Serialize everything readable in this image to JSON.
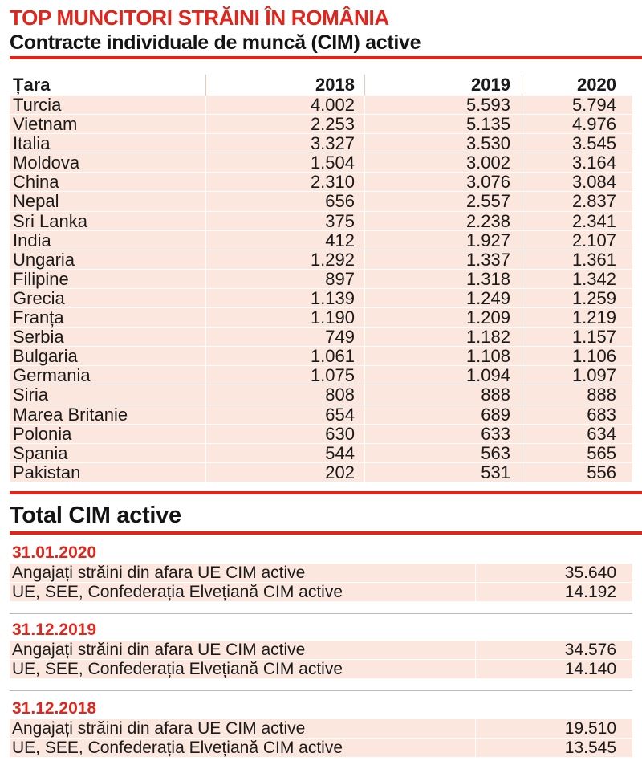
{
  "header": {
    "title": "TOP MUNCITORI STRĂINI ÎN ROMÂNIA",
    "subtitle": "Contracte individuale de muncă (CIM) active"
  },
  "table": {
    "columns": [
      "Țara",
      "2018",
      "2019",
      "2020"
    ],
    "rows": [
      [
        "Turcia",
        "4.002",
        "5.593",
        "5.794"
      ],
      [
        "Vietnam",
        "2.253",
        "5.135",
        "4.976"
      ],
      [
        "Italia",
        "3.327",
        "3.530",
        "3.545"
      ],
      [
        "Moldova",
        "1.504",
        "3.002",
        "3.164"
      ],
      [
        "China",
        "2.310",
        "3.076",
        "3.084"
      ],
      [
        "Nepal",
        "656",
        "2.557",
        "2.837"
      ],
      [
        "Sri Lanka",
        "375",
        "2.238",
        "2.341"
      ],
      [
        "India",
        "412",
        "1.927",
        "2.107"
      ],
      [
        "Ungaria",
        "1.292",
        "1.337",
        "1.361"
      ],
      [
        "Filipine",
        "897",
        "1.318",
        "1.342"
      ],
      [
        "Grecia",
        "1.139",
        "1.249",
        "1.259"
      ],
      [
        "Franța",
        "1.190",
        "1.209",
        "1.219"
      ],
      [
        "Serbia",
        "749",
        "1.182",
        "1.157"
      ],
      [
        "Bulgaria",
        "1.061",
        "1.108",
        "1.106"
      ],
      [
        "Germania",
        "1.075",
        "1.094",
        "1.097"
      ],
      [
        "Siria",
        "808",
        "888",
        "888"
      ],
      [
        "Marea Britanie",
        "654",
        "689",
        "683"
      ],
      [
        "Polonia",
        "630",
        "633",
        "634"
      ],
      [
        "Spania",
        "544",
        "563",
        "565"
      ],
      [
        "Pakistan",
        "202",
        "531",
        "556"
      ]
    ]
  },
  "totals": {
    "title": "Total CIM active",
    "groups": [
      {
        "date": "31.01.2020",
        "rows": [
          {
            "label": "Angajați străini din afara UE CIM active",
            "value": "35.640"
          },
          {
            "label": "UE, SEE, Confederația Elvețiană CIM active",
            "value": "14.192"
          }
        ]
      },
      {
        "date": "31.12.2019",
        "rows": [
          {
            "label": "Angajați străini din afara UE CIM active",
            "value": "34.576"
          },
          {
            "label": "UE, SEE, Confederația Elvețiană CIM active",
            "value": "14.140"
          }
        ]
      },
      {
        "date": "31.12.2018",
        "rows": [
          {
            "label": "Angajați străini din afara UE CIM active",
            "value": "19.510"
          },
          {
            "label": "UE, SEE, Confederația Elvețiană CIM active",
            "value": "13.545"
          }
        ]
      }
    ]
  },
  "colors": {
    "accent": "#e1251b",
    "row_fill": "#fbe7dd",
    "text": "#1a1a1a"
  }
}
